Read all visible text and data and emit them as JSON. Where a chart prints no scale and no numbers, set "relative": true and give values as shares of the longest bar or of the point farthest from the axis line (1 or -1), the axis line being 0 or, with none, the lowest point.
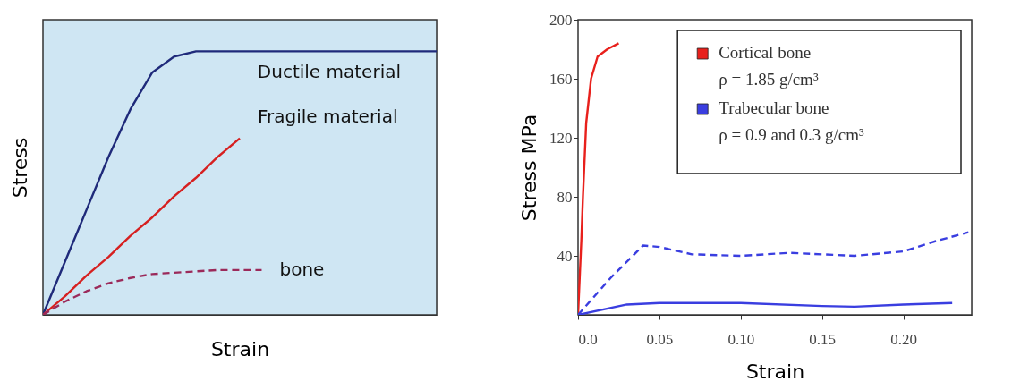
{
  "chart_data": [
    {
      "type": "line",
      "relative": true,
      "xlabel": "Strain",
      "ylabel": "Stress",
      "categories": [
        null,
        null,
        null,
        null,
        null,
        null,
        null,
        null,
        null,
        null,
        null,
        null,
        null,
        null,
        null,
        null,
        null,
        null,
        null
      ],
      "series": [
        {
          "name": "Ductile material",
          "color": "#1f2a7a",
          "line_style": "solid",
          "values": [
            0,
            0.2,
            0.4,
            0.6,
            0.78,
            0.92,
            0.98,
            1,
            1,
            1,
            1,
            1,
            1,
            1,
            1,
            1,
            1,
            1,
            1
          ]
        },
        {
          "name": "Fragile material",
          "color": "#d62020",
          "line_style": "solid",
          "values": [
            0,
            0.07,
            0.15,
            0.22,
            0.3,
            0.37,
            0.45,
            0.52,
            0.6,
            0.67,
            null,
            null,
            null,
            null,
            null,
            null,
            null,
            null,
            null
          ]
        },
        {
          "name": "bone",
          "color": "#9b2a5a",
          "line_style": "dashed",
          "values": [
            0,
            0.05,
            0.09,
            0.12,
            0.14,
            0.155,
            0.16,
            0.165,
            0.17,
            0.17,
            0.17,
            null,
            null,
            null,
            null,
            null,
            null,
            null,
            null
          ]
        }
      ]
    },
    {
      "type": "line",
      "xlabel": "Strain",
      "ylabel": "Stress MPa",
      "xlim": [
        0,
        0.242
      ],
      "ylim": [
        0,
        200
      ],
      "xticks": [
        {
          "value": 0,
          "label": "0.0"
        },
        0.05,
        {
          "value": 0.1,
          "label": "0.10"
        },
        0.15,
        {
          "value": 0.2,
          "label": "0.20"
        }
      ],
      "yticks": [
        40,
        80,
        120,
        160,
        200
      ],
      "legend": "top right",
      "series": [
        {
          "name": "Cortical bone\nρ = 1.85 g/cm³",
          "color": "#e8201c",
          "line_style": "solid",
          "x": [
            0,
            0.002,
            0.003,
            0.005,
            0.008,
            0.012,
            0.018,
            0.025
          ],
          "values": [
            0,
            50,
            80,
            130,
            160,
            175,
            180,
            184
          ]
        },
        {
          "name": "Trabecular bone\nρ = 0.9 and 0.3 g/cm³",
          "color": "#3a3ee0",
          "line_style": "dashed",
          "x": [
            0,
            0.02,
            0.04,
            0.05,
            0.07,
            0.1,
            0.13,
            0.15,
            0.17,
            0.2,
            0.22,
            0.24
          ],
          "values": [
            0,
            25,
            47,
            46,
            41,
            40,
            42,
            41,
            40,
            43,
            50,
            56
          ]
        },
        {
          "color": "#3a3ee0",
          "line_style": "solid",
          "x": [
            0,
            0.03,
            0.05,
            0.1,
            0.15,
            0.17,
            0.2,
            0.23
          ],
          "values": [
            0,
            7,
            8,
            8,
            6,
            5.5,
            7,
            8
          ]
        }
      ]
    }
  ]
}
